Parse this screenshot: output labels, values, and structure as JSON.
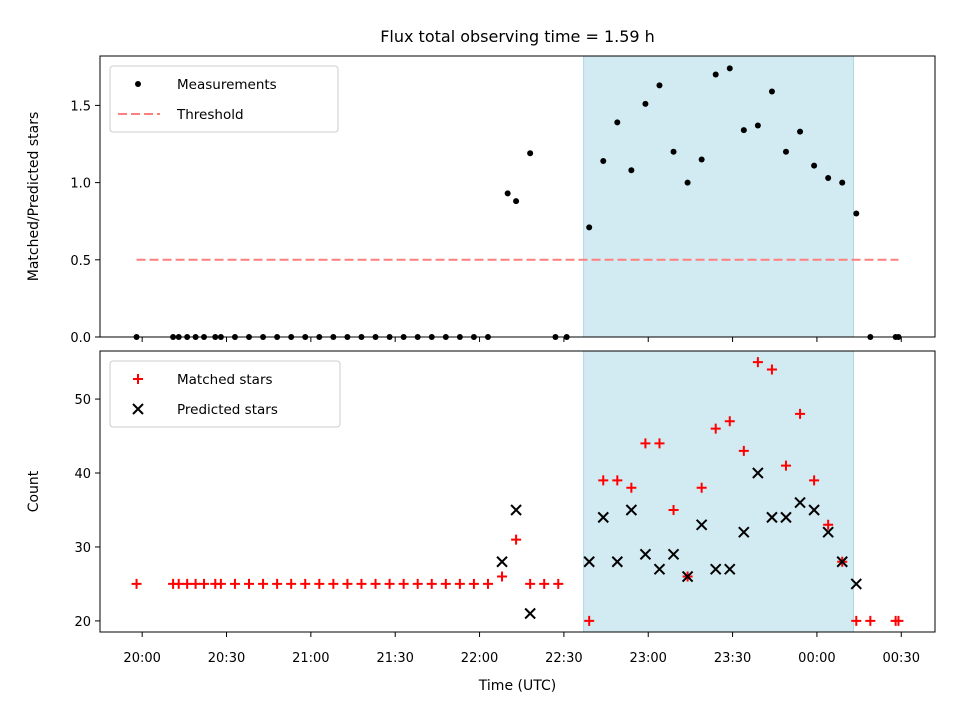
{
  "chart_data": {
    "title": "Flux total observing time = 1.59 h",
    "xlabel": "Time (UTC)",
    "x_ticks": [
      "20:00",
      "20:30",
      "21:00",
      "21:30",
      "22:00",
      "22:30",
      "23:00",
      "23:30",
      "00:00",
      "00:30"
    ],
    "x_tick_minutes": [
      0,
      30,
      60,
      90,
      120,
      150,
      180,
      210,
      240,
      270
    ],
    "xlim_minutes": [
      -15,
      282
    ],
    "shaded_interval_minutes": [
      157,
      253
    ],
    "shade_color": "#add8e6",
    "panels": [
      {
        "type": "scatter",
        "ylabel": "Matched/Predicted stars",
        "ylim": [
          0,
          1.82
        ],
        "y_ticks": [
          "0.0",
          "0.5",
          "1.0",
          "1.5"
        ],
        "y_tick_values": [
          0,
          0.5,
          1.0,
          1.5
        ],
        "legend_position": "top-left",
        "series": [
          {
            "name": "Measurements",
            "marker": "dot",
            "color": "#000000",
            "x": [
              -2,
              11,
              13,
              16,
              19,
              22,
              26,
              28,
              33,
              38,
              43,
              48,
              53,
              58,
              63,
              68,
              73,
              78,
              83,
              88,
              93,
              98,
              103,
              108,
              113,
              118,
              123,
              130,
              133,
              138,
              147,
              151,
              159,
              164,
              169,
              174,
              179,
              184,
              189,
              194,
              199,
              204,
              209,
              214,
              219,
              224,
              229,
              234,
              239,
              244,
              249,
              254,
              259,
              268,
              269
            ],
            "y": [
              0,
              0,
              0,
              0,
              0,
              0,
              0,
              0,
              0,
              0,
              0,
              0,
              0,
              0,
              0,
              0,
              0,
              0,
              0,
              0,
              0,
              0,
              0,
              0,
              0,
              0,
              0,
              0.93,
              0.88,
              1.19,
              0,
              0,
              0.71,
              1.14,
              1.39,
              1.08,
              1.51,
              1.63,
              1.2,
              1.0,
              1.15,
              1.7,
              1.74,
              1.34,
              1.37,
              1.59,
              1.2,
              1.33,
              1.11,
              1.03,
              1.0,
              0.8,
              0,
              0,
              0
            ]
          },
          {
            "name": "Threshold",
            "marker": "dashed-line",
            "color": "#ff7f7f",
            "x": [
              -2,
              269
            ],
            "y": [
              0.5,
              0.5
            ]
          }
        ]
      },
      {
        "type": "scatter",
        "ylabel": "Count",
        "ylim": [
          18.5,
          56.5
        ],
        "y_ticks": [
          "20",
          "30",
          "40",
          "50"
        ],
        "y_tick_values": [
          20,
          30,
          40,
          50
        ],
        "legend_position": "top-left",
        "series": [
          {
            "name": "Matched stars",
            "marker": "plus",
            "color": "#ff0000",
            "x": [
              -2,
              11,
              13,
              16,
              19,
              22,
              26,
              28,
              33,
              38,
              43,
              48,
              53,
              58,
              63,
              68,
              73,
              78,
              83,
              88,
              93,
              98,
              103,
              108,
              113,
              118,
              123,
              128,
              133,
              138,
              143,
              148,
              159,
              164,
              169,
              174,
              179,
              184,
              189,
              194,
              199,
              204,
              209,
              214,
              219,
              224,
              229,
              234,
              239,
              244,
              249,
              254,
              259,
              268,
              269
            ],
            "y": [
              25,
              25,
              25,
              25,
              25,
              25,
              25,
              25,
              25,
              25,
              25,
              25,
              25,
              25,
              25,
              25,
              25,
              25,
              25,
              25,
              25,
              25,
              25,
              25,
              25,
              25,
              25,
              26,
              31,
              25,
              25,
              25,
              20,
              39,
              39,
              38,
              44,
              44,
              35,
              26,
              38,
              46,
              47,
              43,
              55,
              54,
              41,
              48,
              39,
              33,
              28,
              20,
              20,
              20,
              20
            ]
          },
          {
            "name": "Predicted stars",
            "marker": "x",
            "color": "#000000",
            "x": [
              128,
              133,
              138,
              159,
              164,
              169,
              174,
              179,
              184,
              189,
              194,
              199,
              204,
              209,
              214,
              219,
              224,
              229,
              234,
              239,
              244,
              249,
              254
            ],
            "y": [
              28,
              35,
              21,
              28,
              34,
              28,
              35,
              29,
              27,
              29,
              26,
              33,
              27,
              27,
              32,
              40,
              34,
              34,
              36,
              35,
              32,
              28,
              25
            ]
          }
        ]
      }
    ]
  }
}
